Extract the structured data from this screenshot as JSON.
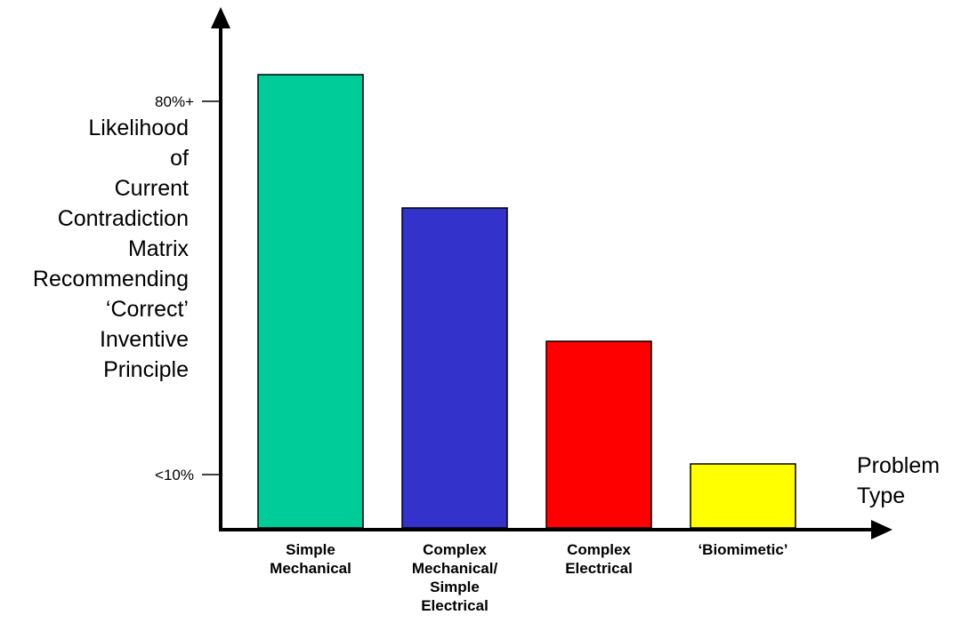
{
  "chart_data": {
    "type": "bar",
    "categories": [
      [
        "Simple",
        "Mechanical"
      ],
      [
        "Complex",
        "Mechanical/",
        "Simple",
        "Electrical"
      ],
      [
        "Complex",
        "Electrical"
      ],
      [
        "‘Biomimetic’"
      ]
    ],
    "values": [
      85,
      60,
      35,
      12
    ],
    "colors": [
      "#00cc99",
      "#3333cc",
      "#ff0000",
      "#ffff00"
    ],
    "y_ticks": [
      {
        "label": "80%+",
        "value": 80
      },
      {
        "label": "<10%",
        "value": 10
      }
    ],
    "ylim": [
      0,
      100
    ],
    "ylabel": [
      "Likelihood",
      "of",
      "Current",
      "Contradiction",
      "Matrix",
      "Recommending",
      "‘Correct’",
      "Inventive",
      "Principle"
    ],
    "xlabel": [
      "Problem",
      "Type"
    ],
    "grid": false,
    "legend": "none"
  }
}
